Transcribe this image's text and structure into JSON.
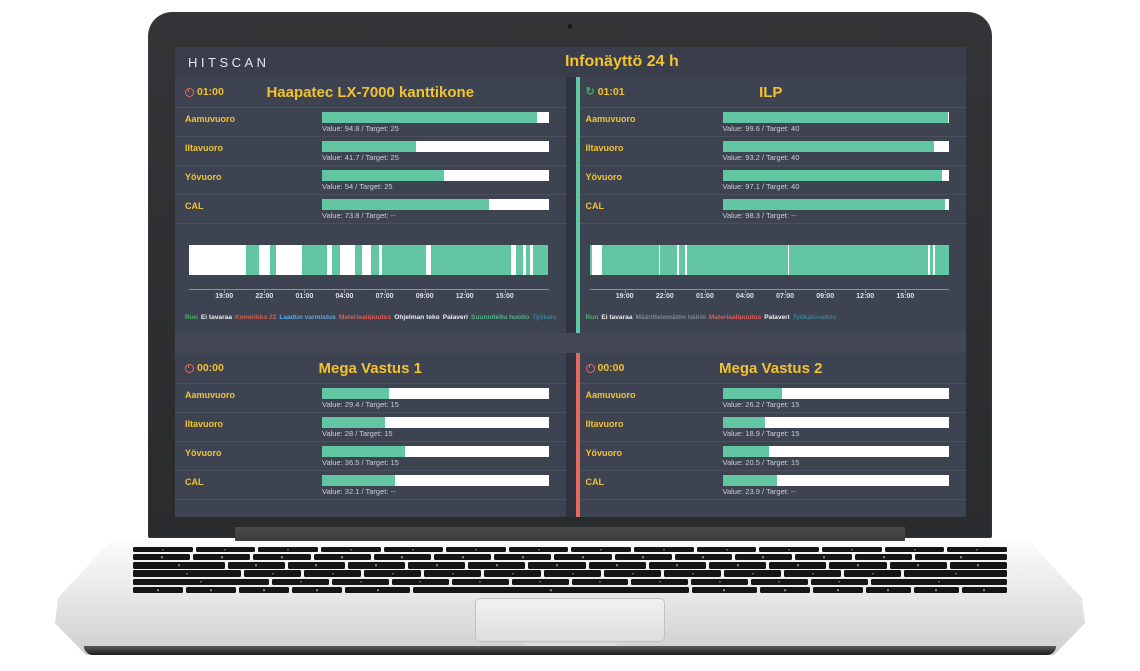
{
  "header": {
    "logo": "HITSCAN",
    "title": "Infonäyttö 24 h"
  },
  "colors": {
    "accent_yellow": "#f2c230",
    "bar_green": "#63c6a3",
    "bar_track_white": "#ffffff",
    "status_red": "#e4695e",
    "status_green": "#5ec9a2",
    "refresh_green": "#3fae5c",
    "panel_bg": "#3e4351",
    "screen_bg": "#343843"
  },
  "ticks": [
    "19:00",
    "22:00",
    "01:00",
    "04:00",
    "07:00",
    "09:00",
    "12:00",
    "15:00"
  ],
  "panels": [
    {
      "title": "Haapatec LX-7000 kanttikone",
      "timer": "01:00",
      "timer_icon": "clock",
      "timer_icon_color": "#e4695e",
      "accent": null,
      "rows": [
        {
          "label": "Aamuvuoro",
          "value": "Value: 94.8 / Target: 25",
          "pct": 94.8
        },
        {
          "label": "Iltavuoro",
          "value": "Value: 41.7 / Target: 25",
          "pct": 41.7
        },
        {
          "label": "Yövuoro",
          "value": "Value: 54 / Target: 25",
          "pct": 54
        },
        {
          "label": "CAL",
          "value": "Value: 73.8 / Target: --",
          "pct": 73.8
        }
      ],
      "timeline": {
        "segments": [
          [
            "w",
            15.9
          ],
          [
            "g",
            3.7
          ],
          [
            "w",
            2.8
          ],
          [
            "g",
            1.7
          ],
          [
            "w",
            7.2
          ],
          [
            "g",
            7.2
          ],
          [
            "w",
            1.2
          ],
          [
            "g",
            2.3
          ],
          [
            "w",
            4.3
          ],
          [
            "g",
            1.8
          ],
          [
            "w",
            2.4
          ],
          [
            "g",
            2.3
          ],
          [
            "w",
            0.9
          ],
          [
            "g",
            12.2
          ],
          [
            "w",
            1.4
          ],
          [
            "g",
            22.4
          ],
          [
            "w",
            1.4
          ],
          [
            "g",
            1.9
          ],
          [
            "w",
            0.7
          ],
          [
            "g",
            1.3
          ],
          [
            "w",
            0.6
          ],
          [
            "g",
            4.4
          ]
        ],
        "legend": [
          [
            "Run",
            "#4db36b"
          ],
          [
            "Ei tavaraa",
            "#e9ebef"
          ],
          [
            "Konerikko 22",
            "#c9614f"
          ],
          [
            "Laadun varmistus",
            "#57a7ea"
          ],
          [
            "Materiaalipuutos",
            "#d95c55"
          ],
          [
            "Ohjelman teko",
            "#e9ebef"
          ],
          [
            "Palaveri",
            "#e9ebef"
          ],
          [
            "Suunniteltu huolto",
            "#58b08b"
          ],
          [
            "Työkaluvaihto",
            "#3f7f92"
          ]
        ]
      }
    },
    {
      "title": "ILP",
      "timer": "01:01",
      "timer_icon": "refresh",
      "timer_icon_color": "#3fae5c",
      "accent": "#5ec9a2",
      "rows": [
        {
          "label": "Aamuvuoro",
          "value": "Value: 99.6 / Target: 40",
          "pct": 99.6
        },
        {
          "label": "Iltavuoro",
          "value": "Value: 93.2 / Target: 40",
          "pct": 93.2
        },
        {
          "label": "Yövuoro",
          "value": "Value: 97.1 / Target: 40",
          "pct": 97.1
        },
        {
          "label": "CAL",
          "value": "Value: 98.3 / Target: --",
          "pct": 98.3
        }
      ],
      "timeline": {
        "segments": [
          [
            "g",
            0.6
          ],
          [
            "w",
            3.0
          ],
          [
            "g",
            15.6
          ],
          [
            "w",
            0.5
          ],
          [
            "g",
            4.7
          ],
          [
            "w",
            0.5
          ],
          [
            "g",
            1.7
          ],
          [
            "w",
            0.5
          ],
          [
            "g",
            28.0
          ],
          [
            "w",
            0.4
          ],
          [
            "g",
            38.6
          ],
          [
            "w",
            0.5
          ],
          [
            "g",
            1.0
          ],
          [
            "w",
            0.4
          ],
          [
            "g",
            4.0
          ]
        ],
        "legend": [
          [
            "Run",
            "#4db36b"
          ],
          [
            "Ei tavaraa",
            "#e9ebef"
          ],
          [
            "Määrittelemätön häiriö",
            "#7e8593"
          ],
          [
            "Materiaalipuutos",
            "#d95c55"
          ],
          [
            "Palaveri",
            "#e9ebef"
          ],
          [
            "Työkaluvaihto",
            "#3f7f92"
          ]
        ]
      }
    },
    {
      "title": "Mega Vastus 1",
      "timer": "00:00",
      "timer_icon": "clock",
      "timer_icon_color": "#e4695e",
      "accent": null,
      "rows": [
        {
          "label": "Aamuvuoro",
          "value": "Value: 29.4 / Target: 15",
          "pct": 29.4
        },
        {
          "label": "Iltavuoro",
          "value": "Value: 28 / Target: 15",
          "pct": 28
        },
        {
          "label": "Yövuoro",
          "value": "Value: 36.5 / Target: 15",
          "pct": 36.5
        },
        {
          "label": "CAL",
          "value": "Value: 32.1 / Target: --",
          "pct": 32.1
        }
      ],
      "timeline": null
    },
    {
      "title": "Mega Vastus 2",
      "timer": "00:00",
      "timer_icon": "clock",
      "timer_icon_color": "#e4695e",
      "accent": "#e4695e",
      "rows": [
        {
          "label": "Aamuvuoro",
          "value": "Value: 26.2 / Target: 15",
          "pct": 26.2
        },
        {
          "label": "Iltavuoro",
          "value": "Value: 18.9 / Target: 15",
          "pct": 18.9
        },
        {
          "label": "Yövuoro",
          "value": "Value: 20.5 / Target: 15",
          "pct": 20.5
        },
        {
          "label": "CAL",
          "value": "Value: 23.9 / Target: --",
          "pct": 23.9
        }
      ],
      "timeline": null
    }
  ]
}
